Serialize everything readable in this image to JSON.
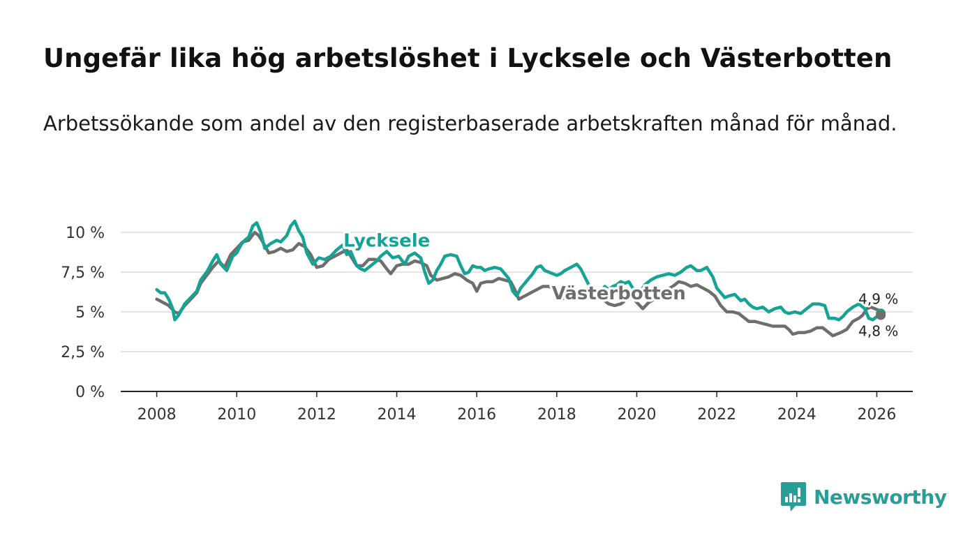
{
  "header": {
    "title": "Ungefär lika hög arbetslöshet i Lycksele och Västerbotten",
    "subtitle": "Arbetssökande som andel av den registerbaserade arbetskraften månad för månad."
  },
  "brand": {
    "name": "Newsworthy",
    "icon": "newsworthy-logo-icon",
    "color": "#2a9d96"
  },
  "chart_data": {
    "type": "line",
    "title": "Ungefär lika hög arbetslöshet i Lycksele och Västerbotten",
    "subtitle": "Arbetssökande som andel av den registerbaserade arbetskraften månad för månad.",
    "xlabel": "",
    "ylabel": "",
    "xlim": [
      2007.1,
      2026.9
    ],
    "ylim": [
      0,
      10
    ],
    "grid": true,
    "x_ticks": [
      {
        "value": 2008,
        "label": "2008"
      },
      {
        "value": 2010,
        "label": "2010"
      },
      {
        "value": 2012,
        "label": "2012"
      },
      {
        "value": 2014,
        "label": "2014"
      },
      {
        "value": 2016,
        "label": "2016"
      },
      {
        "value": 2018,
        "label": "2018"
      },
      {
        "value": 2020,
        "label": "2020"
      },
      {
        "value": 2022,
        "label": "2022"
      },
      {
        "value": 2024,
        "label": "2024"
      },
      {
        "value": 2026,
        "label": "2026"
      }
    ],
    "y_ticks": [
      {
        "value": 0,
        "label": "0 %"
      },
      {
        "value": 2.5,
        "label": "2,5 %"
      },
      {
        "value": 5,
        "label": "5 %"
      },
      {
        "value": 7.5,
        "label": "7,5 %"
      },
      {
        "value": 10,
        "label": "10 %"
      }
    ],
    "series": [
      {
        "name": "Lycksele",
        "color": "#14a394",
        "label_anchor": [
          2013.75,
          9.1
        ],
        "end_label": "4,9 %",
        "end_label_position": "above",
        "points": [
          [
            2008.0,
            6.4
          ],
          [
            2008.1,
            6.2
          ],
          [
            2008.2,
            6.2
          ],
          [
            2008.3,
            5.8
          ],
          [
            2008.4,
            5.2
          ],
          [
            2008.45,
            4.5
          ],
          [
            2008.55,
            4.8
          ],
          [
            2008.7,
            5.5
          ],
          [
            2008.85,
            5.9
          ],
          [
            2009.0,
            6.3
          ],
          [
            2009.1,
            7.0
          ],
          [
            2009.25,
            7.5
          ],
          [
            2009.4,
            8.2
          ],
          [
            2009.5,
            8.6
          ],
          [
            2009.6,
            8.0
          ],
          [
            2009.75,
            7.6
          ],
          [
            2009.9,
            8.5
          ],
          [
            2010.0,
            8.7
          ],
          [
            2010.1,
            9.2
          ],
          [
            2010.2,
            9.5
          ],
          [
            2010.3,
            9.7
          ],
          [
            2010.4,
            10.4
          ],
          [
            2010.5,
            10.6
          ],
          [
            2010.6,
            10.0
          ],
          [
            2010.7,
            9.0
          ],
          [
            2010.85,
            9.3
          ],
          [
            2011.0,
            9.5
          ],
          [
            2011.1,
            9.4
          ],
          [
            2011.25,
            9.8
          ],
          [
            2011.35,
            10.4
          ],
          [
            2011.45,
            10.7
          ],
          [
            2011.55,
            10.1
          ],
          [
            2011.65,
            9.7
          ],
          [
            2011.75,
            8.7
          ],
          [
            2011.9,
            8.0
          ],
          [
            2012.05,
            8.4
          ],
          [
            2012.2,
            8.3
          ],
          [
            2012.35,
            8.5
          ],
          [
            2012.5,
            8.9
          ],
          [
            2012.65,
            9.2
          ],
          [
            2012.75,
            8.6
          ],
          [
            2012.85,
            8.8
          ],
          [
            2013.0,
            7.9
          ],
          [
            2013.1,
            7.7
          ],
          [
            2013.2,
            7.6
          ],
          [
            2013.35,
            7.9
          ],
          [
            2013.5,
            8.2
          ],
          [
            2013.6,
            8.5
          ],
          [
            2013.75,
            8.8
          ],
          [
            2013.9,
            8.4
          ],
          [
            2014.05,
            8.5
          ],
          [
            2014.2,
            8.0
          ],
          [
            2014.3,
            8.5
          ],
          [
            2014.45,
            8.7
          ],
          [
            2014.6,
            8.4
          ],
          [
            2014.7,
            7.5
          ],
          [
            2014.8,
            6.8
          ],
          [
            2014.9,
            7.0
          ],
          [
            2015.0,
            7.6
          ],
          [
            2015.1,
            8.0
          ],
          [
            2015.2,
            8.5
          ],
          [
            2015.35,
            8.6
          ],
          [
            2015.5,
            8.5
          ],
          [
            2015.6,
            7.9
          ],
          [
            2015.7,
            7.4
          ],
          [
            2015.8,
            7.5
          ],
          [
            2015.9,
            7.9
          ],
          [
            2016.0,
            7.8
          ],
          [
            2016.1,
            7.8
          ],
          [
            2016.2,
            7.6
          ],
          [
            2016.3,
            7.7
          ],
          [
            2016.45,
            7.8
          ],
          [
            2016.6,
            7.7
          ],
          [
            2016.7,
            7.4
          ],
          [
            2016.8,
            7.1
          ],
          [
            2016.9,
            6.3
          ],
          [
            2017.0,
            6.0
          ],
          [
            2017.1,
            6.5
          ],
          [
            2017.2,
            6.8
          ],
          [
            2017.3,
            7.1
          ],
          [
            2017.4,
            7.4
          ],
          [
            2017.5,
            7.8
          ],
          [
            2017.6,
            7.9
          ],
          [
            2017.7,
            7.6
          ],
          [
            2017.8,
            7.5
          ],
          [
            2017.9,
            7.4
          ],
          [
            2018.0,
            7.3
          ],
          [
            2018.1,
            7.4
          ],
          [
            2018.2,
            7.6
          ],
          [
            2018.35,
            7.8
          ],
          [
            2018.5,
            8.0
          ],
          [
            2018.6,
            7.7
          ],
          [
            2018.7,
            7.2
          ],
          [
            2018.8,
            6.7
          ],
          [
            2018.9,
            6.4
          ],
          [
            2019.0,
            6.1
          ],
          [
            2019.1,
            6.3
          ],
          [
            2019.2,
            6.6
          ],
          [
            2019.3,
            6.4
          ],
          [
            2019.4,
            6.6
          ],
          [
            2019.5,
            6.7
          ],
          [
            2019.6,
            6.9
          ],
          [
            2019.7,
            6.8
          ],
          [
            2019.8,
            6.9
          ],
          [
            2019.9,
            6.5
          ],
          [
            2020.0,
            6.0
          ],
          [
            2020.1,
            6.3
          ],
          [
            2020.2,
            6.7
          ],
          [
            2020.35,
            7.0
          ],
          [
            2020.5,
            7.2
          ],
          [
            2020.65,
            7.3
          ],
          [
            2020.8,
            7.4
          ],
          [
            2020.95,
            7.3
          ],
          [
            2021.1,
            7.5
          ],
          [
            2021.25,
            7.8
          ],
          [
            2021.35,
            7.9
          ],
          [
            2021.5,
            7.6
          ],
          [
            2021.6,
            7.6
          ],
          [
            2021.75,
            7.8
          ],
          [
            2021.9,
            7.2
          ],
          [
            2022.0,
            6.5
          ],
          [
            2022.1,
            6.2
          ],
          [
            2022.2,
            5.9
          ],
          [
            2022.3,
            6.0
          ],
          [
            2022.45,
            6.1
          ],
          [
            2022.6,
            5.7
          ],
          [
            2022.7,
            5.8
          ],
          [
            2022.8,
            5.5
          ],
          [
            2022.9,
            5.3
          ],
          [
            2023.0,
            5.2
          ],
          [
            2023.15,
            5.3
          ],
          [
            2023.3,
            5.0
          ],
          [
            2023.45,
            5.2
          ],
          [
            2023.6,
            5.3
          ],
          [
            2023.7,
            5.0
          ],
          [
            2023.8,
            4.9
          ],
          [
            2023.95,
            5.0
          ],
          [
            2024.1,
            4.9
          ],
          [
            2024.25,
            5.2
          ],
          [
            2024.4,
            5.5
          ],
          [
            2024.55,
            5.5
          ],
          [
            2024.7,
            5.4
          ],
          [
            2024.8,
            4.6
          ],
          [
            2024.95,
            4.6
          ],
          [
            2025.05,
            4.5
          ],
          [
            2025.15,
            4.7
          ],
          [
            2025.25,
            5.0
          ],
          [
            2025.4,
            5.3
          ],
          [
            2025.55,
            5.5
          ],
          [
            2025.7,
            5.2
          ],
          [
            2025.8,
            4.6
          ],
          [
            2025.9,
            4.5
          ],
          [
            2026.0,
            4.7
          ],
          [
            2026.1,
            4.9
          ]
        ]
      },
      {
        "name": "Västerbotten",
        "color": "#6e6e6e",
        "label_anchor": [
          2019.55,
          5.8
        ],
        "end_label": "4,8 %",
        "end_label_position": "below",
        "points": [
          [
            2008.0,
            5.8
          ],
          [
            2008.15,
            5.6
          ],
          [
            2008.3,
            5.4
          ],
          [
            2008.45,
            5.0
          ],
          [
            2008.55,
            4.9
          ],
          [
            2008.7,
            5.4
          ],
          [
            2008.85,
            5.8
          ],
          [
            2009.0,
            6.2
          ],
          [
            2009.1,
            6.8
          ],
          [
            2009.25,
            7.3
          ],
          [
            2009.4,
            7.8
          ],
          [
            2009.55,
            8.2
          ],
          [
            2009.7,
            7.8
          ],
          [
            2009.85,
            8.6
          ],
          [
            2010.0,
            9.0
          ],
          [
            2010.15,
            9.4
          ],
          [
            2010.3,
            9.5
          ],
          [
            2010.45,
            10.0
          ],
          [
            2010.55,
            9.8
          ],
          [
            2010.65,
            9.4
          ],
          [
            2010.8,
            8.7
          ],
          [
            2010.95,
            8.8
          ],
          [
            2011.1,
            9.0
          ],
          [
            2011.25,
            8.8
          ],
          [
            2011.4,
            8.9
          ],
          [
            2011.55,
            9.3
          ],
          [
            2011.7,
            9.1
          ],
          [
            2011.85,
            8.6
          ],
          [
            2012.0,
            7.8
          ],
          [
            2012.15,
            7.9
          ],
          [
            2012.3,
            8.3
          ],
          [
            2012.45,
            8.5
          ],
          [
            2012.6,
            8.7
          ],
          [
            2012.75,
            8.9
          ],
          [
            2012.9,
            8.3
          ],
          [
            2013.0,
            7.9
          ],
          [
            2013.15,
            7.9
          ],
          [
            2013.3,
            8.3
          ],
          [
            2013.45,
            8.3
          ],
          [
            2013.6,
            8.2
          ],
          [
            2013.75,
            7.7
          ],
          [
            2013.85,
            7.4
          ],
          [
            2014.0,
            7.9
          ],
          [
            2014.15,
            8.0
          ],
          [
            2014.3,
            8.0
          ],
          [
            2014.45,
            8.2
          ],
          [
            2014.6,
            8.1
          ],
          [
            2014.75,
            7.9
          ],
          [
            2014.85,
            7.3
          ],
          [
            2015.0,
            7.0
          ],
          [
            2015.15,
            7.1
          ],
          [
            2015.3,
            7.2
          ],
          [
            2015.45,
            7.4
          ],
          [
            2015.6,
            7.3
          ],
          [
            2015.75,
            7.0
          ],
          [
            2015.9,
            6.8
          ],
          [
            2016.0,
            6.3
          ],
          [
            2016.1,
            6.8
          ],
          [
            2016.25,
            6.9
          ],
          [
            2016.4,
            6.9
          ],
          [
            2016.55,
            7.1
          ],
          [
            2016.7,
            7.0
          ],
          [
            2016.85,
            6.9
          ],
          [
            2016.95,
            6.4
          ],
          [
            2017.05,
            5.8
          ],
          [
            2017.2,
            6.0
          ],
          [
            2017.35,
            6.2
          ],
          [
            2017.5,
            6.4
          ],
          [
            2017.65,
            6.6
          ],
          [
            2017.8,
            6.6
          ],
          [
            2017.95,
            6.4
          ],
          [
            2018.1,
            5.8
          ],
          [
            2018.25,
            5.9
          ],
          [
            2018.4,
            6.0
          ],
          [
            2018.55,
            6.0
          ],
          [
            2018.7,
            6.2
          ],
          [
            2018.85,
            6.3
          ],
          [
            2019.0,
            6.1
          ],
          [
            2019.15,
            5.8
          ],
          [
            2019.3,
            5.5
          ],
          [
            2019.45,
            5.4
          ],
          [
            2019.6,
            5.5
          ],
          [
            2019.75,
            5.8
          ],
          [
            2019.9,
            5.9
          ],
          [
            2020.0,
            5.6
          ],
          [
            2020.15,
            5.2
          ],
          [
            2020.3,
            5.6
          ],
          [
            2020.45,
            5.8
          ],
          [
            2020.6,
            6.1
          ],
          [
            2020.75,
            6.4
          ],
          [
            2020.9,
            6.6
          ],
          [
            2021.05,
            6.9
          ],
          [
            2021.2,
            6.8
          ],
          [
            2021.35,
            6.6
          ],
          [
            2021.5,
            6.7
          ],
          [
            2021.65,
            6.5
          ],
          [
            2021.8,
            6.3
          ],
          [
            2021.95,
            6.0
          ],
          [
            2022.1,
            5.4
          ],
          [
            2022.25,
            5.0
          ],
          [
            2022.4,
            5.0
          ],
          [
            2022.55,
            4.9
          ],
          [
            2022.7,
            4.6
          ],
          [
            2022.8,
            4.4
          ],
          [
            2022.95,
            4.4
          ],
          [
            2023.1,
            4.3
          ],
          [
            2023.25,
            4.2
          ],
          [
            2023.4,
            4.1
          ],
          [
            2023.55,
            4.1
          ],
          [
            2023.7,
            4.1
          ],
          [
            2023.8,
            3.9
          ],
          [
            2023.9,
            3.6
          ],
          [
            2024.05,
            3.7
          ],
          [
            2024.2,
            3.7
          ],
          [
            2024.35,
            3.8
          ],
          [
            2024.5,
            4.0
          ],
          [
            2024.65,
            4.0
          ],
          [
            2024.8,
            3.7
          ],
          [
            2024.9,
            3.5
          ],
          [
            2025.0,
            3.6
          ],
          [
            2025.1,
            3.7
          ],
          [
            2025.25,
            3.9
          ],
          [
            2025.4,
            4.4
          ],
          [
            2025.55,
            4.6
          ],
          [
            2025.65,
            4.8
          ],
          [
            2025.75,
            5.2
          ],
          [
            2025.85,
            5.3
          ],
          [
            2025.95,
            5.2
          ],
          [
            2026.05,
            5.1
          ],
          [
            2026.1,
            4.8
          ]
        ]
      }
    ]
  }
}
